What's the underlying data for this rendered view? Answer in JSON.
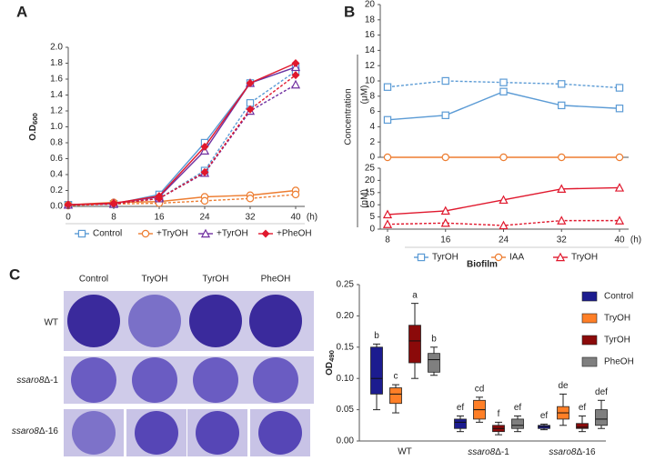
{
  "chart_data": [
    {
      "type": "line",
      "panel": "A",
      "ylabel": "O.D",
      "ylabel_sub": "600",
      "x_unit": "(h)",
      "x": [
        0,
        8,
        16,
        24,
        32,
        40
      ],
      "xlim": [
        0,
        40
      ],
      "xticks": [
        0,
        8,
        16,
        24,
        32,
        40
      ],
      "ylim": [
        0,
        2.0
      ],
      "yticks": [
        {
          "value": 0,
          "label": "0.0"
        },
        0.2,
        0.4,
        0.6,
        0.8,
        {
          "value": 1.0,
          "label": "1.0"
        },
        1.2,
        1.4,
        1.6,
        1.8,
        {
          "value": 2.0,
          "label": "2.0"
        }
      ],
      "series": [
        {
          "name": "Control",
          "color": "#5b9bd5",
          "marker": "square",
          "values": [
            0.02,
            0.03,
            0.15,
            0.8,
            1.55,
            1.75
          ],
          "dashed_values": [
            0.02,
            0.03,
            0.1,
            0.45,
            1.3,
            1.7
          ]
        },
        {
          "name": "+TryOH",
          "color": "#ed7d31",
          "marker": "circle",
          "values": [
            0.02,
            0.05,
            0.06,
            0.12,
            0.14,
            0.2
          ],
          "dashed_values": [
            0.01,
            0.03,
            0.04,
            0.07,
            0.1,
            0.15
          ]
        },
        {
          "name": "+TyrOH",
          "color": "#7030a0",
          "marker": "triangle",
          "values": [
            0.02,
            0.04,
            0.12,
            0.7,
            1.55,
            1.75
          ],
          "dashed_values": [
            0.02,
            0.03,
            0.1,
            0.42,
            1.2,
            1.53
          ]
        },
        {
          "name": "+PheOH",
          "color": "#e0182d",
          "marker": "diamond",
          "values": [
            0.02,
            0.04,
            0.13,
            0.75,
            1.55,
            1.8
          ],
          "dashed_values": [
            0.02,
            0.03,
            0.1,
            0.43,
            1.22,
            1.65
          ]
        }
      ]
    },
    {
      "type": "line",
      "panel": "B",
      "ylabel": "Concentration",
      "x_unit": "(h)",
      "x": [
        8,
        16,
        24,
        32,
        40
      ],
      "xlim": [
        8,
        40
      ],
      "xticks": [
        8,
        16,
        24,
        32,
        40
      ],
      "panels": [
        {
          "unit": "(μM)",
          "ylim": [
            0,
            20
          ],
          "yticks": [
            0,
            2,
            4,
            6,
            8,
            10,
            12,
            14,
            16,
            18,
            20
          ],
          "series": [
            {
              "name": "TyrOH",
              "color": "#5b9bd5",
              "marker": "square",
              "values": [
                4.9,
                5.5,
                8.6,
                6.8,
                6.4
              ],
              "dashed_values": [
                9.2,
                10.0,
                9.8,
                9.6,
                9.1
              ]
            },
            {
              "name": "IAA",
              "color": "#ed7d31",
              "marker": "circle",
              "values": [
                0,
                0,
                0,
                0,
                0
              ]
            }
          ]
        },
        {
          "unit": "(nM)",
          "ylim": [
            0,
            25
          ],
          "yticks": [
            0,
            5,
            10,
            15,
            20,
            25
          ],
          "series": [
            {
              "name": "TryOH",
              "color": "#e0182d",
              "marker": "triangle",
              "values": [
                6,
                7.5,
                12,
                16.5,
                17
              ],
              "dashed_values": [
                2,
                2.5,
                1.5,
                3.5,
                3.5
              ]
            }
          ]
        }
      ]
    },
    {
      "type": "box",
      "title": "Biofilm",
      "ylabel": "OD",
      "ylabel_sub": "490",
      "categories": [
        "WT",
        "ssaro8Δ-1",
        "ssaro8Δ-16"
      ],
      "ylim": [
        0,
        0.25
      ],
      "yticks": [
        {
          "value": 0,
          "label": "0.00"
        },
        0.05,
        {
          "value": 0.1,
          "label": "0.10"
        },
        0.15,
        {
          "value": 0.2,
          "label": "0.20"
        },
        0.25
      ],
      "series": [
        {
          "name": "Control",
          "color": "#1c1c8f",
          "letters": [
            "b",
            "ef",
            "ef"
          ],
          "boxes": [
            {
              "min": 0.05,
              "q1": 0.075,
              "median": 0.1,
              "q3": 0.15,
              "max": 0.155
            },
            {
              "min": 0.015,
              "q1": 0.02,
              "median": 0.03,
              "q3": 0.035,
              "max": 0.04
            },
            {
              "min": 0.018,
              "q1": 0.02,
              "median": 0.023,
              "q3": 0.025,
              "max": 0.027
            }
          ]
        },
        {
          "name": "TryOH",
          "color": "#ff7f27",
          "letters": [
            "c",
            "cd",
            "de"
          ],
          "boxes": [
            {
              "min": 0.045,
              "q1": 0.06,
              "median": 0.075,
              "q3": 0.085,
              "max": 0.09
            },
            {
              "min": 0.03,
              "q1": 0.035,
              "median": 0.05,
              "q3": 0.065,
              "max": 0.07
            },
            {
              "min": 0.025,
              "q1": 0.035,
              "median": 0.045,
              "q3": 0.055,
              "max": 0.075
            }
          ]
        },
        {
          "name": "TyrOH",
          "color": "#8b0a0a",
          "letters": [
            "a",
            "f",
            "ef"
          ],
          "boxes": [
            {
              "min": 0.1,
              "q1": 0.125,
              "median": 0.16,
              "q3": 0.185,
              "max": 0.22
            },
            {
              "min": 0.01,
              "q1": 0.015,
              "median": 0.02,
              "q3": 0.025,
              "max": 0.03
            },
            {
              "min": 0.015,
              "q1": 0.02,
              "median": 0.022,
              "q3": 0.028,
              "max": 0.04
            }
          ]
        },
        {
          "name": "PheOH",
          "color": "#7f7f7f",
          "letters": [
            "b",
            "ef",
            "def"
          ],
          "boxes": [
            {
              "min": 0.105,
              "q1": 0.11,
              "median": 0.13,
              "q3": 0.14,
              "max": 0.15
            },
            {
              "min": 0.015,
              "q1": 0.02,
              "median": 0.025,
              "q3": 0.035,
              "max": 0.04
            },
            {
              "min": 0.02,
              "q1": 0.025,
              "median": 0.035,
              "q3": 0.05,
              "max": 0.065
            }
          ]
        }
      ]
    }
  ],
  "plate": {
    "panel": "C",
    "columns": [
      "Control",
      "TryOH",
      "TyrOH",
      "PheOH"
    ],
    "rows": [
      "WT",
      "ssaro8Δ-1",
      "ssaro8Δ-16"
    ]
  }
}
